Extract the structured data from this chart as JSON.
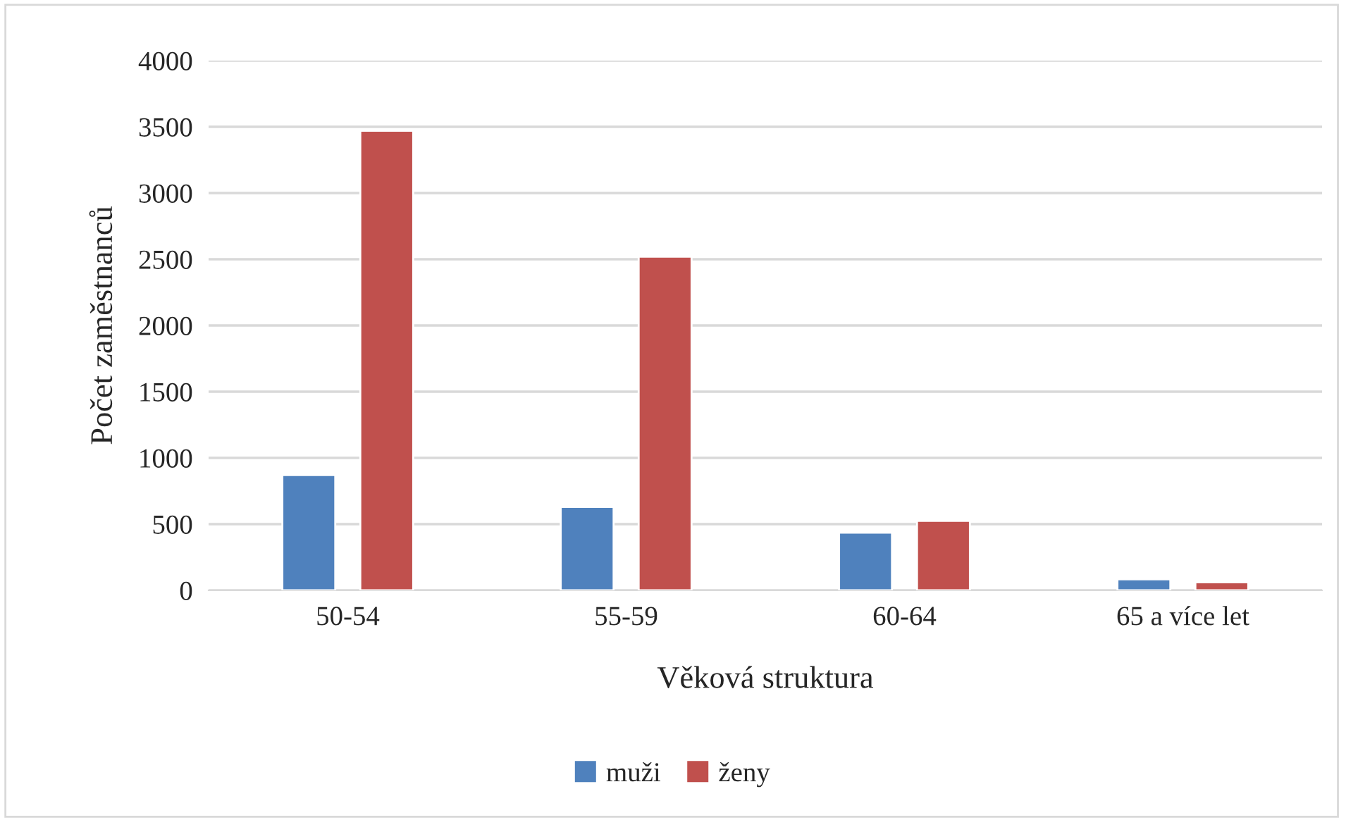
{
  "chart_data": {
    "type": "bar",
    "xlabel": "Věková struktura",
    "ylabel": "Počet zaměstnanců",
    "categories": [
      "50-54",
      "55-59",
      "60-64",
      "65 a více let"
    ],
    "series": [
      {
        "name": "muži",
        "color": "#4f81bd",
        "values": [
          870,
          630,
          435,
          83
        ]
      },
      {
        "name": "ženy",
        "color": "#c0504d",
        "values": [
          3470,
          2520,
          525,
          61
        ]
      }
    ],
    "ylim": [
      0,
      4000
    ],
    "yticks": [
      0,
      500,
      1000,
      1500,
      2000,
      2500,
      3000,
      3500,
      4000
    ],
    "grid": "y",
    "legend": "bottom"
  }
}
